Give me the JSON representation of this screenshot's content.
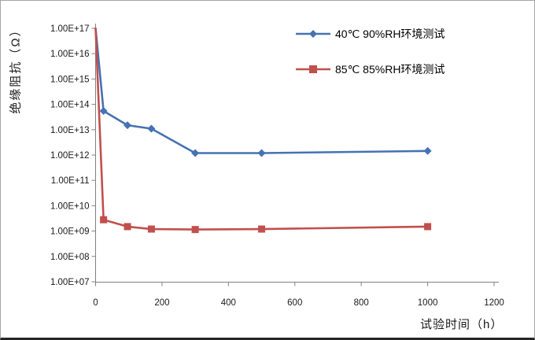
{
  "chart_data": {
    "type": "line",
    "title": "",
    "xlabel": "试验时间（h）",
    "ylabel": "绝缘阻抗（Ω）",
    "x_ticks": [
      0,
      200,
      400,
      600,
      800,
      1000,
      1200
    ],
    "y_ticks": [
      "1.00E+17",
      "1.00E+16",
      "1.00E+15",
      "1.00E+14",
      "1.00E+13",
      "1.00E+12",
      "1.00E+11",
      "1.00E+10",
      "1.00E+09",
      "1.00E+08",
      "1.00E+07"
    ],
    "xlim": [
      0,
      1200
    ],
    "y_log_range": [
      7,
      17
    ],
    "grid": false,
    "legend_position": "top-right-inside",
    "axis_color": "#808080",
    "text_color": "#1a1a1a",
    "series": [
      {
        "name": "40℃ 90%RH环境测试",
        "color": "#4672B2",
        "marker": "diamond",
        "x": [
          0,
          24,
          96,
          168,
          300,
          500,
          1000
        ],
        "y": [
          1e+17,
          55000000000000.0,
          15000000000000.0,
          11000000000000.0,
          1200000000000.0,
          1200000000000.0,
          1450000000000.0
        ]
      },
      {
        "name": "85℃ 85%RH环境测试",
        "color": "#C0504D",
        "marker": "square",
        "x": [
          0,
          24,
          96,
          168,
          300,
          500,
          1000
        ],
        "y": [
          1e+17,
          2800000000.0,
          1500000000.0,
          1200000000.0,
          1150000000.0,
          1200000000.0,
          1500000000.0
        ]
      }
    ]
  }
}
